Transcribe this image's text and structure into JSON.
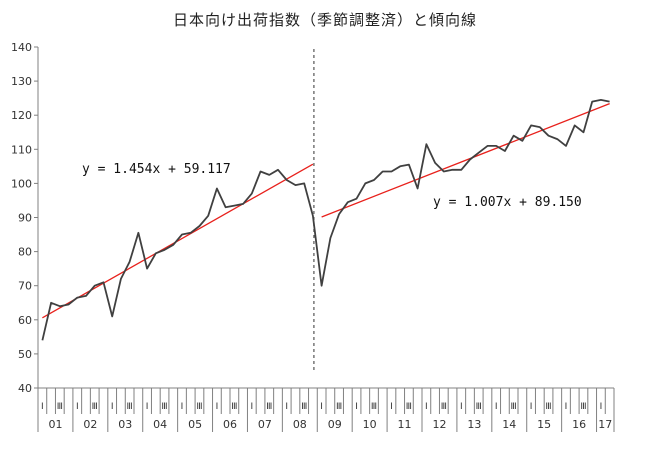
{
  "chart_data": {
    "type": "line",
    "title": "日本向け出荷指数（季節調整済）と傾向線",
    "ylim": [
      40,
      140
    ],
    "yticks": [
      40,
      50,
      60,
      70,
      80,
      90,
      100,
      110,
      120,
      130,
      140
    ],
    "grid": false,
    "x_quarter_labels": [
      "Ⅰ",
      "Ⅲ"
    ],
    "x_year_labels": [
      "01",
      "02",
      "03",
      "04",
      "05",
      "06",
      "07",
      "08",
      "09",
      "10",
      "11",
      "12",
      "13",
      "14",
      "15",
      "16",
      "17"
    ],
    "series": [
      {
        "values": [
          54,
          65,
          64,
          64.5,
          66.5,
          67,
          70,
          71,
          61,
          72,
          77,
          85.5,
          75,
          79.5,
          80.5,
          82,
          85,
          85.5,
          87.5,
          90.5,
          98.5,
          93,
          93.5,
          94,
          97,
          103.5,
          102.5,
          104,
          101,
          99.5,
          100,
          90.5,
          70,
          84,
          91,
          94.5,
          95.5,
          100,
          101,
          103.5,
          103.5,
          105,
          105.5,
          98.5,
          111.5,
          106,
          103.5,
          104,
          104,
          107,
          109,
          111,
          111,
          109.5,
          114,
          112.5,
          117,
          116.5,
          114,
          113,
          111,
          117,
          115,
          124,
          124.5,
          124
        ]
      }
    ],
    "trend_lines": [
      {
        "equation": "y = 1.454x + 59.117",
        "slope": 1.454,
        "intercept": 59.117,
        "x_start": 1,
        "x_end": 32
      },
      {
        "equation": "y = 1.007x + 89.150",
        "slope": 1.007,
        "intercept": 89.15,
        "x_start": 1,
        "x_end": 34
      }
    ],
    "divider_after_period": 32,
    "colors": {
      "series": "#404040",
      "trend": "#e8211c",
      "axis": "#808080",
      "divider": "#555555"
    }
  }
}
